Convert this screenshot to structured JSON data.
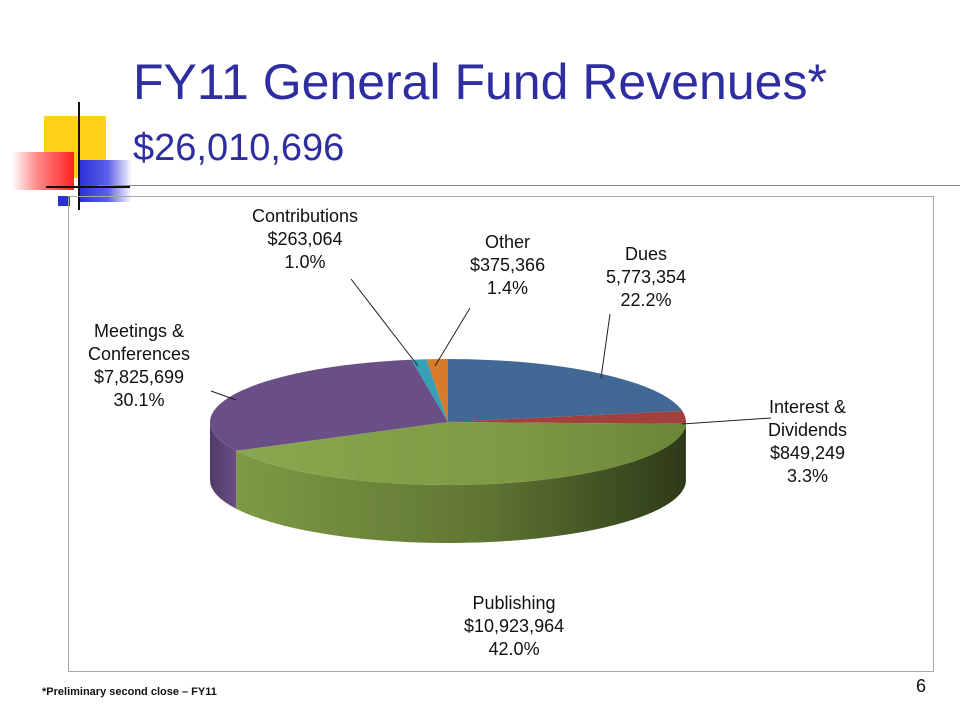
{
  "slide": {
    "title": "FY11 General Fund Revenues*",
    "subtitle": "$26,010,696",
    "footnote": "*Preliminary  second close – FY11",
    "page_number": "6"
  },
  "chart_data": {
    "type": "pie",
    "title": "",
    "style": "3d",
    "slices": [
      {
        "name": "Dues",
        "value_label": "5,773,354",
        "percent_label": "22.2%",
        "value": 5773354,
        "percent": 22.2,
        "color": "#426895"
      },
      {
        "name": "Interest & Dividends",
        "value_label": "$849,249",
        "percent_label": "3.3%",
        "value": 849249,
        "percent": 3.3,
        "color": "#a1403c"
      },
      {
        "name": "Publishing",
        "value_label": "$10,923,964",
        "percent_label": "42.0%",
        "value": 10923964,
        "percent": 42.0,
        "color": "#7e9a44"
      },
      {
        "name": "Meetings & Conferences",
        "value_label": "$7,825,699",
        "percent_label": "30.1%",
        "value": 7825699,
        "percent": 30.1,
        "color": "#6a4f86"
      },
      {
        "name": "Contributions",
        "value_label": "$263,064",
        "percent_label": "1.0%",
        "value": 263064,
        "percent": 1.0,
        "color": "#38a0b6"
      },
      {
        "name": "Other",
        "value_label": "$375,366",
        "percent_label": "1.4%",
        "value": 375366,
        "percent": 1.4,
        "color": "#d67a2c"
      }
    ],
    "labels": [
      {
        "lines": [
          "Dues",
          "5,773,354",
          "22.2%"
        ]
      },
      {
        "lines": [
          "Interest &",
          "Dividends",
          "$849,249",
          "3.3%"
        ]
      },
      {
        "lines": [
          "Publishing",
          "$10,923,964",
          "42.0%"
        ]
      },
      {
        "lines": [
          "Meetings &",
          "Conferences",
          "$7,825,699",
          "30.1%"
        ]
      },
      {
        "lines": [
          "Contributions",
          "$263,064",
          "1.0%"
        ]
      },
      {
        "lines": [
          "Other",
          "$375,366",
          "1.4%"
        ]
      }
    ]
  }
}
